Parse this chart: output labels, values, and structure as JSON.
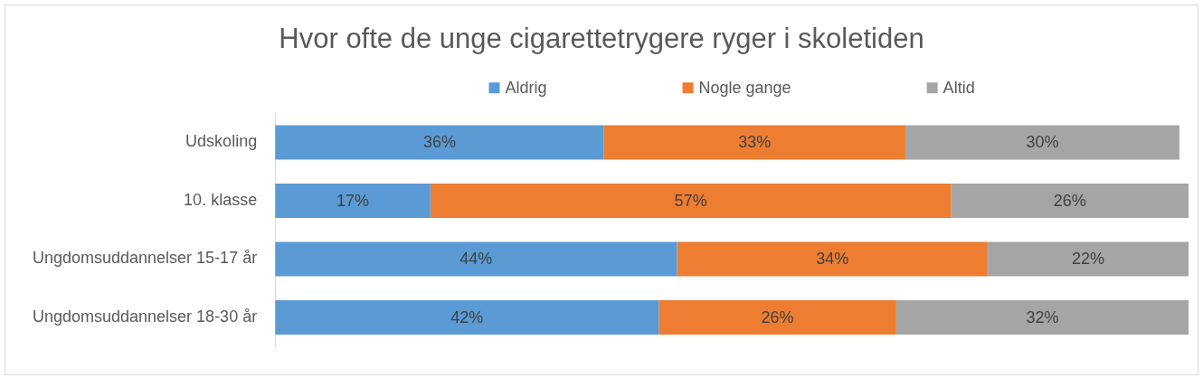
{
  "chart_data": {
    "type": "bar",
    "orientation": "horizontal",
    "stacked": true,
    "title": "Hvor ofte de unge cigarettetrygere ryger i skoletiden",
    "categories": [
      "Udskoling",
      "10. klasse",
      "Ungdomsuddannelser 15-17 år",
      "Ungdomsuddannelser 18-30 år"
    ],
    "series": [
      {
        "name": "Aldrig",
        "color": "#5b9bd5",
        "values": [
          36,
          17,
          44,
          42
        ],
        "value_labels": [
          "36%",
          "17%",
          "44%",
          "42%"
        ]
      },
      {
        "name": "Nogle gange",
        "color": "#ed7d31",
        "values": [
          33,
          57,
          34,
          26
        ],
        "value_labels": [
          "33%",
          "57%",
          "34%",
          "26%"
        ]
      },
      {
        "name": "Altid",
        "color": "#a5a5a5",
        "values": [
          30,
          26,
          22,
          32
        ],
        "value_labels": [
          "30%",
          "26%",
          "22%",
          "32%"
        ]
      }
    ],
    "xlim": [
      0,
      100
    ],
    "tick_labels": "y",
    "legend": "top"
  }
}
